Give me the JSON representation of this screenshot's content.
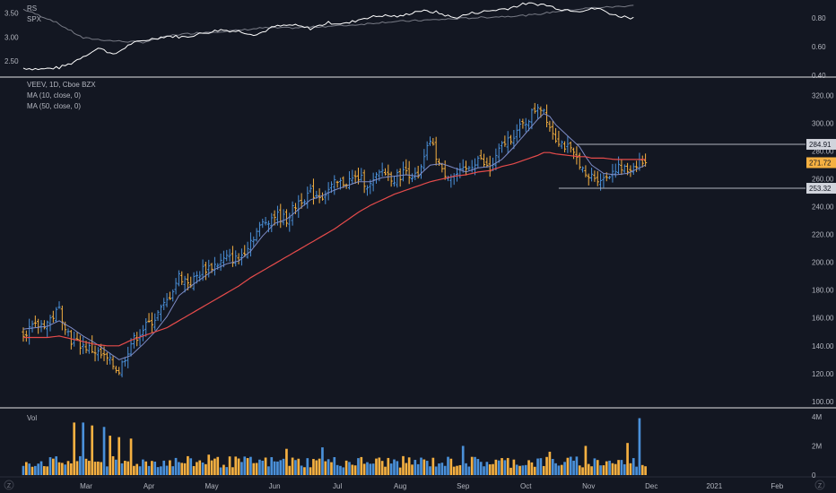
{
  "colors": {
    "background": "#131722",
    "separator": "#e6e6e6",
    "text": "#b2b5be",
    "axis_text": "#b2b5be",
    "up": "#4a90d9",
    "down": "#f5b041",
    "ma_fast": "#7e8cc7",
    "ma_slow": "#e54b4b",
    "level_line": "#b2b5be",
    "last_price_bg": "#f5b041",
    "level_badge_bg": "#d1d4dc",
    "level_badge_text": "#131722",
    "rs_line": "#ffffff",
    "spx_line": "#787b86"
  },
  "chart_data": [
    {
      "type": "line",
      "pane": "relative-strength",
      "legend": [
        "RS",
        "SPX"
      ],
      "left_axis": {
        "ticks": [
          "3.50",
          "3.00",
          "2.50"
        ],
        "ylim": [
          2.2,
          3.7
        ]
      },
      "right_axis": {
        "ticks": [
          "0.80",
          "0.60",
          "0.40"
        ],
        "ylim": [
          0.4,
          0.9
        ]
      },
      "series": [
        {
          "name": "RS",
          "x_index": [
            0,
            6,
            12,
            16,
            20,
            26,
            30,
            36,
            42,
            48,
            54,
            60,
            66,
            72,
            78,
            84,
            90,
            96,
            102,
            108,
            114,
            120,
            126,
            132,
            138,
            144,
            150,
            156,
            162,
            168,
            174,
            180,
            186,
            192,
            198,
            204
          ],
          "values": [
            2.35,
            2.33,
            2.36,
            2.45,
            2.6,
            2.78,
            2.62,
            2.86,
            2.95,
            3.02,
            3.0,
            3.08,
            3.15,
            3.12,
            3.05,
            3.22,
            3.25,
            3.18,
            3.3,
            3.28,
            3.4,
            3.45,
            3.43,
            3.55,
            3.52,
            3.4,
            3.5,
            3.55,
            3.6,
            3.7,
            3.68,
            3.58,
            3.55,
            3.6,
            3.45,
            3.4
          ]
        },
        {
          "name": "SPX",
          "x_index": [
            0,
            10,
            20,
            30,
            40,
            50,
            60,
            70,
            80,
            90,
            100,
            110,
            120,
            130,
            140,
            150,
            160,
            170,
            180,
            190,
            200,
            204
          ],
          "values": [
            0.86,
            0.78,
            0.66,
            0.64,
            0.63,
            0.68,
            0.7,
            0.71,
            0.73,
            0.73,
            0.74,
            0.75,
            0.77,
            0.78,
            0.79,
            0.8,
            0.81,
            0.82,
            0.85,
            0.87,
            0.88,
            0.89
          ]
        }
      ]
    },
    {
      "type": "line",
      "pane": "price",
      "legend": [
        "VEEV, 1D, Cboe BZX",
        "MA (10, close, 0)",
        "MA (50, close, 0)"
      ],
      "y_ticks": [
        320,
        300,
        280,
        260,
        240,
        220,
        200,
        180,
        160,
        140,
        120,
        100
      ],
      "y_tick_labels": [
        "320.00",
        "300.00",
        "280.00",
        "260.00",
        "240.00",
        "220.00",
        "200.00",
        "180.00",
        "160.00",
        "140.00",
        "120.00",
        "100.00"
      ],
      "ylim": [
        96,
        332
      ],
      "x_month_labels": [
        "Mar",
        "Apr",
        "May",
        "Jun",
        "Jul",
        "Aug",
        "Sep",
        "Oct",
        "Nov",
        "Dec",
        "2021",
        "Feb"
      ],
      "x_month_index": [
        21,
        42,
        63,
        84,
        105,
        126,
        147,
        168,
        189,
        210,
        231,
        252
      ],
      "x_range_index": [
        0,
        260
      ],
      "close_anchor_index": [
        0,
        8,
        12,
        16,
        20,
        24,
        28,
        32,
        36,
        40,
        44,
        48,
        52,
        56,
        60,
        64,
        68,
        72,
        76,
        80,
        84,
        88,
        92,
        96,
        100,
        104,
        108,
        112,
        116,
        120,
        124,
        128,
        132,
        136,
        140,
        144,
        148,
        152,
        156,
        160,
        164,
        168,
        172,
        174,
        176,
        178,
        182,
        186,
        188,
        190,
        194,
        198,
        202,
        206,
        208
      ],
      "close_anchor_values": [
        150,
        157,
        166,
        144,
        140,
        136,
        130,
        122,
        142,
        152,
        160,
        172,
        190,
        185,
        195,
        198,
        203,
        202,
        216,
        228,
        234,
        231,
        244,
        250,
        248,
        256,
        258,
        261,
        255,
        266,
        260,
        266,
        260,
        288,
        265,
        262,
        266,
        275,
        266,
        284,
        292,
        301,
        313,
        310,
        298,
        290,
        282,
        272,
        260,
        262,
        260,
        268,
        266,
        273,
        271.72
      ],
      "ma10_anchor_values": [
        152,
        154,
        158,
        153,
        147,
        142,
        136,
        130,
        133,
        141,
        150,
        161,
        176,
        183,
        189,
        195,
        199,
        201,
        208,
        219,
        228,
        231,
        238,
        245,
        248,
        252,
        255,
        258,
        258,
        261,
        262,
        263,
        262,
        270,
        271,
        268,
        265,
        268,
        269,
        274,
        283,
        293,
        303,
        307,
        305,
        299,
        291,
        283,
        276,
        270,
        264,
        263,
        264,
        268,
        270
      ],
      "ma50_anchor_values": [
        146,
        146,
        147,
        145,
        143,
        141,
        140,
        140,
        144,
        147,
        150,
        153,
        158,
        163,
        168,
        173,
        178,
        183,
        189,
        194,
        199,
        204,
        209,
        214,
        219,
        224,
        230,
        236,
        241,
        245,
        249,
        252,
        255,
        258,
        260,
        262,
        263,
        265,
        266,
        269,
        271,
        274,
        277,
        279,
        279,
        278,
        277,
        276,
        276,
        275,
        275,
        274,
        274,
        274,
        274
      ],
      "levels": [
        {
          "label": "284.91",
          "value": 284.91,
          "from_index": 185
        },
        {
          "label": "253.32",
          "value": 253.32,
          "from_index": 179
        }
      ],
      "last_price": {
        "label": "271.72",
        "value": 271.72
      }
    },
    {
      "type": "bar",
      "pane": "volume",
      "legend": [
        "Vol"
      ],
      "y_ticks": [
        4,
        2,
        0
      ],
      "y_tick_labels": [
        "4M",
        "2M",
        "0"
      ],
      "ylim": [
        0,
        4.3
      ],
      "spike_index": [
        17,
        20,
        23,
        27,
        29,
        32,
        36,
        62,
        88,
        100,
        147,
        176,
        188,
        202,
        206
      ],
      "spike_values": [
        3.6,
        3.6,
        3.4,
        3.3,
        2.7,
        2.6,
        2.5,
        1.4,
        1.8,
        1.9,
        2.0,
        1.6,
        2.0,
        2.2,
        3.9
      ],
      "base_volume_range": [
        0.5,
        1.3
      ]
    }
  ],
  "bottom_bar": {
    "left_glyph": "Z",
    "right_glyph": "Z"
  }
}
